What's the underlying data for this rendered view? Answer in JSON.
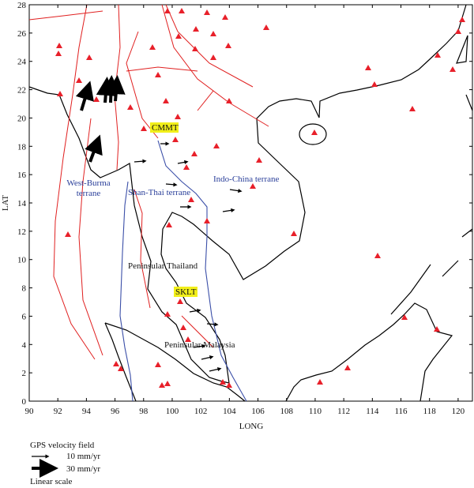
{
  "map": {
    "xlabel": "LONG",
    "ylabel": "LAT",
    "xlim": [
      90,
      121
    ],
    "ylim": [
      0,
      28
    ],
    "xticks": [
      90,
      92,
      94,
      96,
      98,
      100,
      102,
      104,
      106,
      108,
      110,
      112,
      114,
      116,
      118,
      120
    ],
    "yticks": [
      0,
      2,
      4,
      6,
      8,
      10,
      12,
      14,
      16,
      18,
      20,
      22,
      24,
      26,
      28
    ],
    "labels": {
      "west_burma": [
        "West-Burma",
        "terrane"
      ],
      "shan_thai": "Shan-Thai terrane",
      "indo_china": "Indo-China terrane",
      "pen_thailand": "Peninsular Thailand",
      "pen_malaysia": "Peninsular Malaysia",
      "station_north": "CMMT",
      "station_south": "SKLT"
    },
    "legend": {
      "title": "GPS velocity field",
      "items": [
        "10 mm/yr",
        "30 mm/yr"
      ],
      "note": "Linear scale"
    }
  }
}
